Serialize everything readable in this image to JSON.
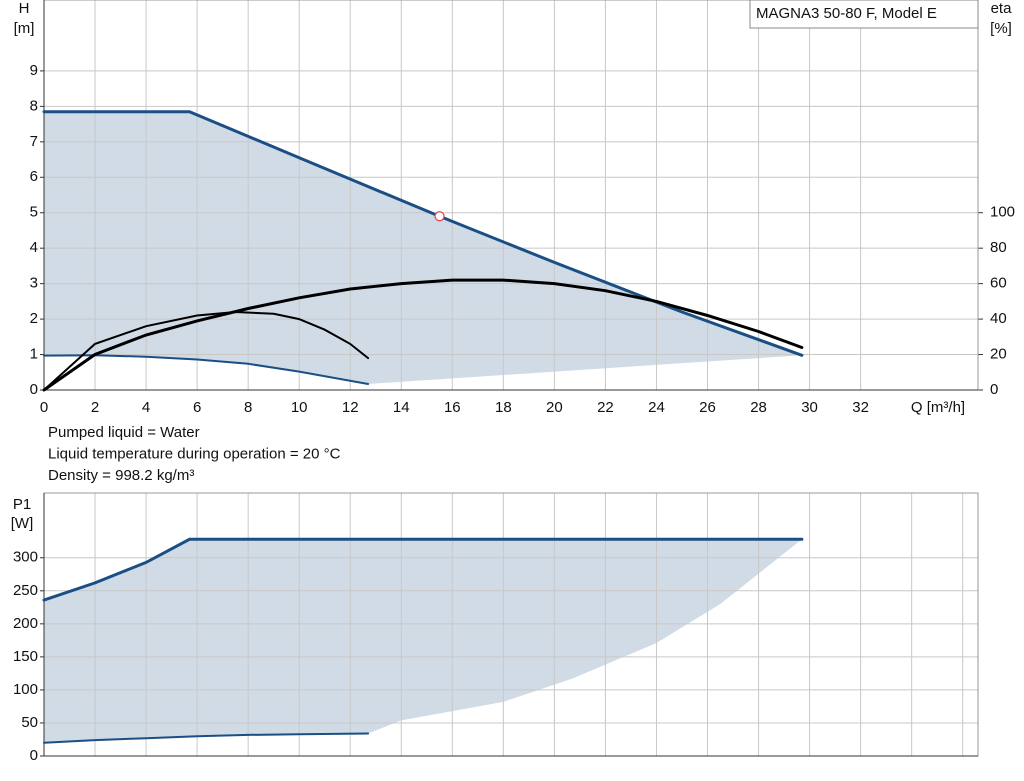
{
  "chart_data": [
    {
      "type": "line",
      "title": "MAGNA3 50-80 F, Model E",
      "y_label": "H",
      "y_unit": "[m]",
      "y2_label": "eta",
      "y2_unit": "[%]",
      "x_label": "Q [m³/h]",
      "xlim": [
        0,
        36.6
      ],
      "xticks": [
        0,
        2,
        4,
        6,
        8,
        10,
        12,
        14,
        16,
        18,
        20,
        22,
        24,
        26,
        28,
        30,
        32
      ],
      "xtick_labels": true,
      "ylim": [
        0,
        11
      ],
      "yticks": [
        0,
        1,
        2,
        3,
        4,
        5,
        6,
        7,
        8,
        9
      ],
      "y2lim": [
        0,
        220
      ],
      "y2ticks": [
        0,
        20,
        40,
        60,
        80,
        100
      ],
      "grid": true,
      "area": {
        "color": "#d0dbe6",
        "top": 0,
        "bottom": [
          1
        ]
      },
      "series": [
        {
          "color": "#1a4f86",
          "width": 3,
          "x": [
            0,
            5.7,
            10,
            15.5,
            20,
            25,
            29.7
          ],
          "values": [
            7.85,
            7.85,
            6.55,
            4.9,
            3.6,
            2.2,
            0.98
          ]
        },
        {
          "color": "#1a4f86",
          "width": 2,
          "x": [
            0,
            2,
            4,
            6,
            8,
            10,
            12.7
          ],
          "values": [
            0.97,
            0.98,
            0.94,
            0.86,
            0.74,
            0.52,
            0.17
          ]
        },
        {
          "color": "#000000",
          "width": 3,
          "axis": "y2",
          "x": [
            0,
            2,
            4,
            6,
            8,
            10,
            12,
            14,
            16,
            18,
            20,
            22,
            24,
            26,
            28,
            29.7
          ],
          "values": [
            0,
            20,
            31,
            39,
            46,
            52,
            57,
            60,
            62,
            62,
            60,
            56,
            50,
            42,
            33,
            24
          ]
        },
        {
          "color": "#000000",
          "width": 2,
          "axis": "y2",
          "x": [
            0,
            2,
            4,
            6,
            7.5,
            9,
            10,
            11,
            12,
            12.7
          ],
          "values": [
            0,
            26,
            36,
            42,
            44,
            43,
            40,
            34,
            26,
            18
          ]
        }
      ],
      "duty_point": {
        "x": 15.5,
        "y": 4.9,
        "color": "#e0404a"
      },
      "notes": [
        "Pumped liquid = Water",
        "Liquid temperature during operation = 20 °C",
        "Density = 998.2 kg/m³"
      ]
    },
    {
      "type": "line",
      "y_label": "P1",
      "y_unit": "[W]",
      "xlim": [
        0,
        36.6
      ],
      "xticks": [
        0,
        2,
        4,
        6,
        8,
        10,
        12,
        14,
        16,
        18,
        20,
        22,
        24,
        26,
        28,
        30,
        32,
        34,
        36
      ],
      "xtick_labels": false,
      "ylim": [
        0,
        398
      ],
      "yticks": [
        0,
        50,
        100,
        150,
        200,
        250,
        300
      ],
      "grid": true,
      "area": {
        "color": "#d0dbe6",
        "top": 0,
        "bottom": [
          2,
          1
        ]
      },
      "series": [
        {
          "color": "#1a4f86",
          "width": 3,
          "x": [
            0,
            2,
            4,
            5.7,
            29.7
          ],
          "values": [
            236,
            262,
            293,
            328,
            328
          ]
        },
        {
          "color": "#1a4f86",
          "width": 2,
          "x": [
            0,
            2,
            4,
            6,
            8,
            10,
            12.7
          ],
          "values": [
            20,
            24,
            27,
            30,
            32,
            33,
            34
          ]
        },
        {
          "color": "#1a4f86",
          "width": 0,
          "stroke": false,
          "x": [
            12.7,
            14,
            18,
            20.7,
            24,
            26.5,
            29.7
          ],
          "values": [
            34,
            54,
            82,
            117,
            171,
            230,
            328
          ]
        }
      ]
    }
  ]
}
